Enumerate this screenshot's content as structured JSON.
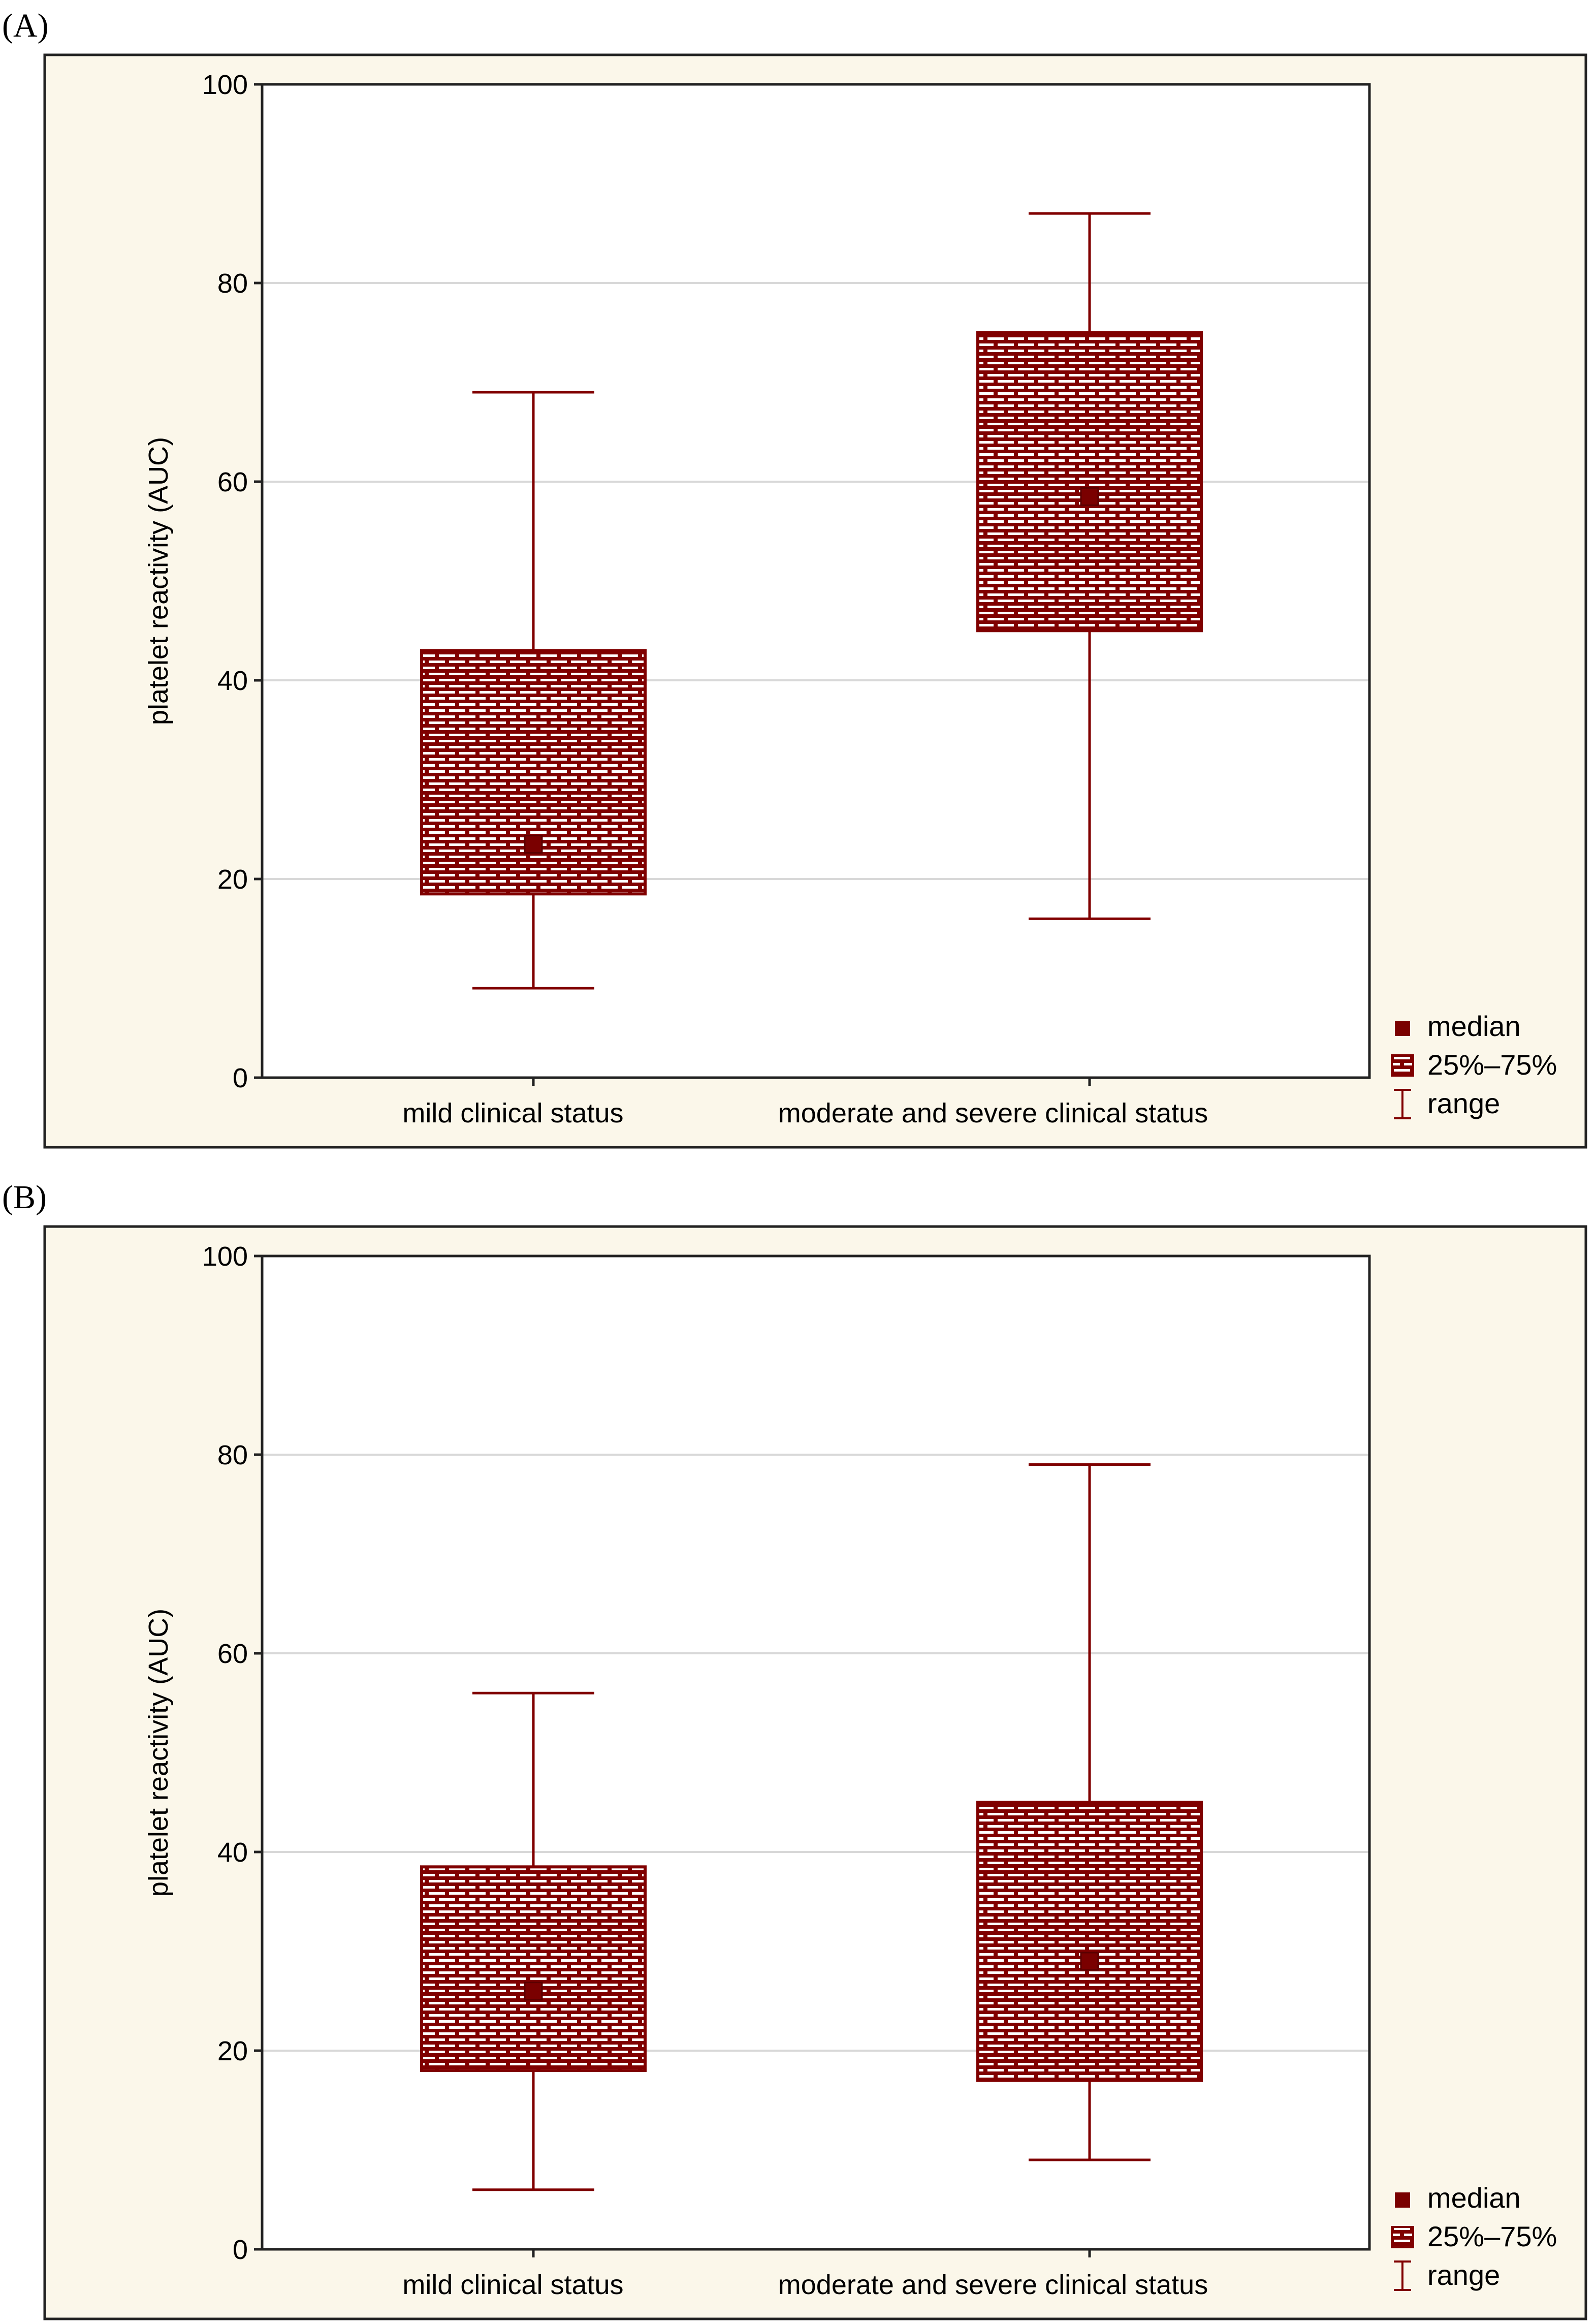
{
  "colors": {
    "outer_background": "#fbf7ea",
    "plot_background": "#ffffff",
    "box_color": "#800000",
    "gridline": "#d8d8d8"
  },
  "legend_labels": [
    "median",
    "25%–75%",
    "range"
  ],
  "chart_data": [
    {
      "panel_label": "(A)",
      "type": "box",
      "ylabel": "platelet reactivity (AUC)",
      "ylim": [
        0,
        100
      ],
      "yticks": [
        0,
        20,
        40,
        60,
        80,
        100
      ],
      "grid": true,
      "legend_position": "bottom-right",
      "categories": [
        "mild clinical status",
        "moderate and severe clinical status"
      ],
      "boxes": [
        {
          "category": "mild clinical status",
          "min": 9,
          "q1": 18.5,
          "median": 23.5,
          "q3": 43,
          "max": 69
        },
        {
          "category": "moderate and severe clinical status",
          "min": 16,
          "q1": 45,
          "median": 58.5,
          "q3": 75,
          "max": 87
        }
      ]
    },
    {
      "panel_label": "(B)",
      "type": "box",
      "ylabel": "platelet reactivity (AUC)",
      "ylim": [
        0,
        100
      ],
      "yticks": [
        0,
        20,
        40,
        60,
        80,
        100
      ],
      "grid": true,
      "legend_position": "bottom-right",
      "categories": [
        "mild clinical status",
        "moderate and severe clinical status"
      ],
      "boxes": [
        {
          "category": "mild clinical status",
          "min": 6,
          "q1": 18,
          "median": 26,
          "q3": 38.5,
          "max": 56
        },
        {
          "category": "moderate and severe clinical status",
          "min": 9,
          "q1": 17,
          "median": 29,
          "q3": 45,
          "max": 79
        }
      ]
    }
  ]
}
